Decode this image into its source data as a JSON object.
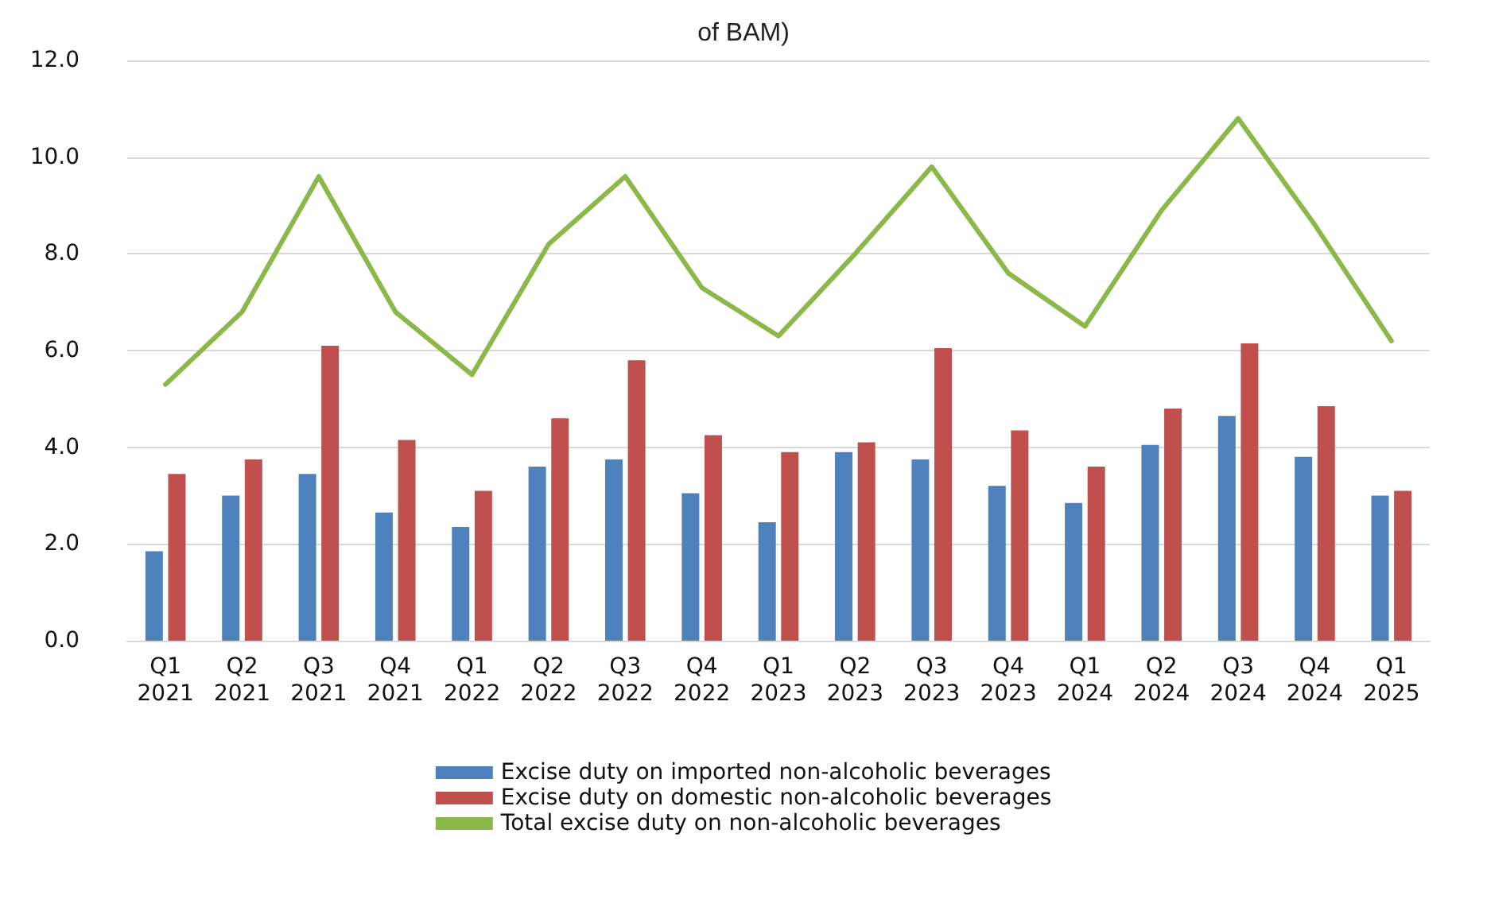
{
  "chart_data": {
    "type": "bar",
    "title": "of BAM)",
    "categories": [
      "Q1\n2021",
      "Q2\n2021",
      "Q3\n2021",
      "Q4\n2021",
      "Q1\n2022",
      "Q2\n2022",
      "Q3\n2022",
      "Q4\n2022",
      "Q1\n2023",
      "Q2\n2023",
      "Q3\n2023",
      "Q4\n2023",
      "Q1\n2024",
      "Q2\n2024",
      "Q3\n2024",
      "Q4\n2024",
      "Q1\n2025"
    ],
    "series": [
      {
        "name": "Excise duty on imported non-alcoholic beverages",
        "color": "#4f81bd",
        "values": [
          1.85,
          3.0,
          3.45,
          2.65,
          2.35,
          3.6,
          3.75,
          3.05,
          2.45,
          3.9,
          3.75,
          3.2,
          2.85,
          4.05,
          4.65,
          3.8,
          3.0
        ]
      },
      {
        "name": "Excise duty on domestic non-alcoholic beverages",
        "color": "#c0504d",
        "values": [
          3.45,
          3.75,
          6.1,
          4.15,
          3.1,
          4.6,
          5.8,
          4.25,
          3.9,
          4.1,
          6.05,
          4.35,
          3.6,
          4.8,
          6.15,
          4.85,
          3.1
        ]
      },
      {
        "name": "Total excise duty on non-alcoholic beverages",
        "type": "line",
        "color": "#8cb84a",
        "values": [
          5.3,
          6.8,
          9.6,
          6.8,
          5.5,
          8.2,
          9.6,
          7.3,
          6.3,
          8.0,
          9.8,
          7.6,
          6.5,
          8.9,
          10.8,
          8.6,
          6.2
        ]
      }
    ],
    "ylim": [
      0,
      12
    ],
    "yticks": [
      {
        "value": 0,
        "label": "0.0"
      },
      {
        "value": 2,
        "label": "2.0"
      },
      {
        "value": 4,
        "label": "4.0"
      },
      {
        "value": 6,
        "label": "6.0"
      },
      {
        "value": 8,
        "label": "8.0"
      },
      {
        "value": 10,
        "label": "10.0"
      },
      {
        "value": 12,
        "label": "12.0"
      }
    ],
    "grid": "y",
    "legend": "bottom",
    "marker": "none"
  }
}
